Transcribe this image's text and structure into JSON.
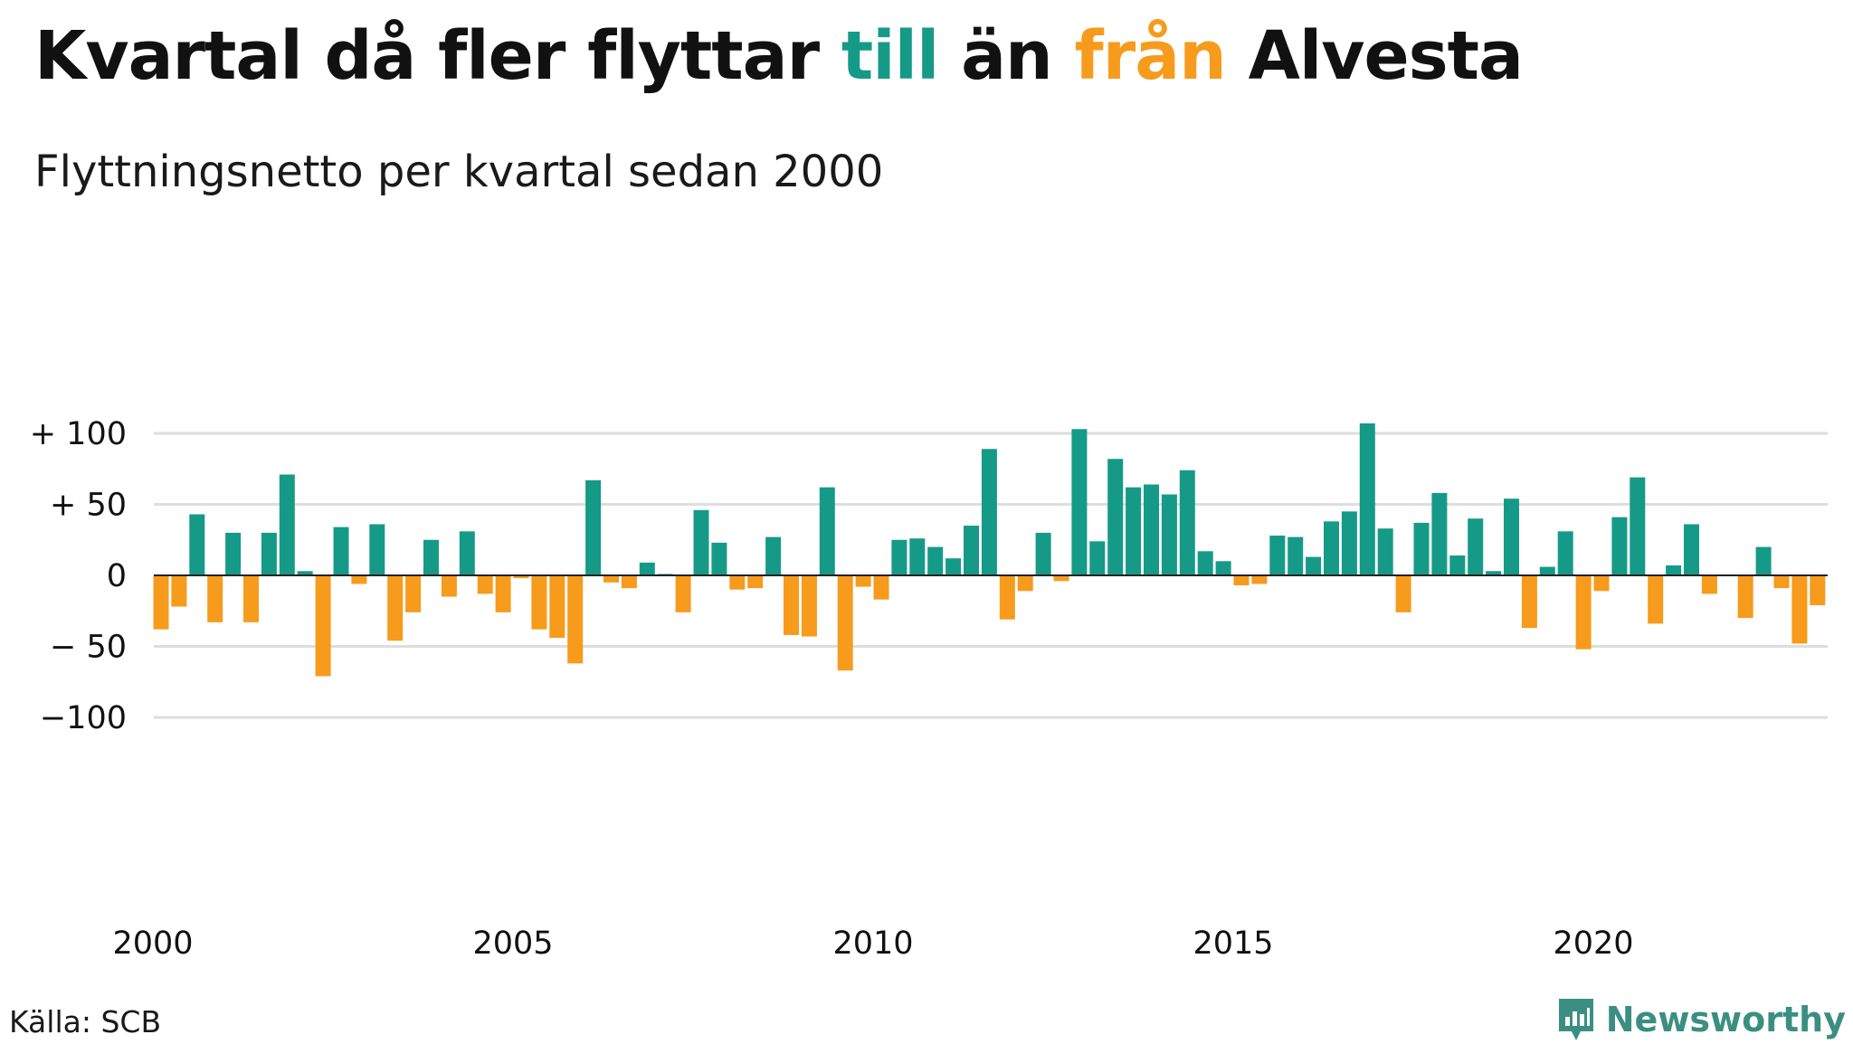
{
  "title": {
    "part1": "Kvartal då fler flyttar ",
    "part2": "till",
    "part3": " än ",
    "part4": "från",
    "part5": " Alvesta"
  },
  "subtitle": "Flyttningsnetto per kvartal sedan 2000",
  "source": "Källa: SCB",
  "brand": {
    "name": "Newsworthy",
    "icon": "newsworthy-logo-icon"
  },
  "colors": {
    "positive": "#159a88",
    "negative": "#f79b1c",
    "grid": "#dddddd",
    "title_positive": "#159a88",
    "title_negative": "#f79b1c"
  },
  "chart_data": {
    "type": "bar",
    "x_start": 2000,
    "x_step": 0.25,
    "values": [
      -38,
      -22,
      43,
      -33,
      30,
      -33,
      30,
      71,
      3,
      -71,
      34,
      -6,
      36,
      -46,
      -26,
      25,
      -15,
      31,
      -13,
      -26,
      -2,
      -38,
      -44,
      -62,
      67,
      -5,
      -9,
      9,
      1,
      -26,
      46,
      23,
      -10,
      -9,
      27,
      -42,
      -43,
      62,
      -67,
      -8,
      -17,
      25,
      26,
      20,
      12,
      35,
      89,
      -31,
      -11,
      30,
      -4,
      103,
      24,
      82,
      62,
      64,
      57,
      74,
      17,
      10,
      -7,
      -6,
      28,
      27,
      13,
      38,
      45,
      107,
      33,
      -26,
      37,
      58,
      14,
      40,
      3,
      54,
      -37,
      6,
      31,
      -52,
      -11,
      41,
      69,
      -34,
      7,
      36,
      -13,
      0,
      -30,
      20,
      -9,
      -48,
      -21
    ],
    "ylim": [
      -110,
      110
    ],
    "yticks": [
      100,
      50,
      0,
      -50,
      -100
    ],
    "ytick_labels": [
      "+ 100",
      "+  50",
      "0",
      "− 50",
      "−100"
    ],
    "xticks": [
      2000,
      2005,
      2010,
      2015,
      2020
    ],
    "xtick_labels": [
      "2000",
      "2005",
      "2010",
      "2015",
      "2020"
    ],
    "xlabel": "",
    "ylabel": "",
    "grid": true,
    "legend": "none"
  }
}
